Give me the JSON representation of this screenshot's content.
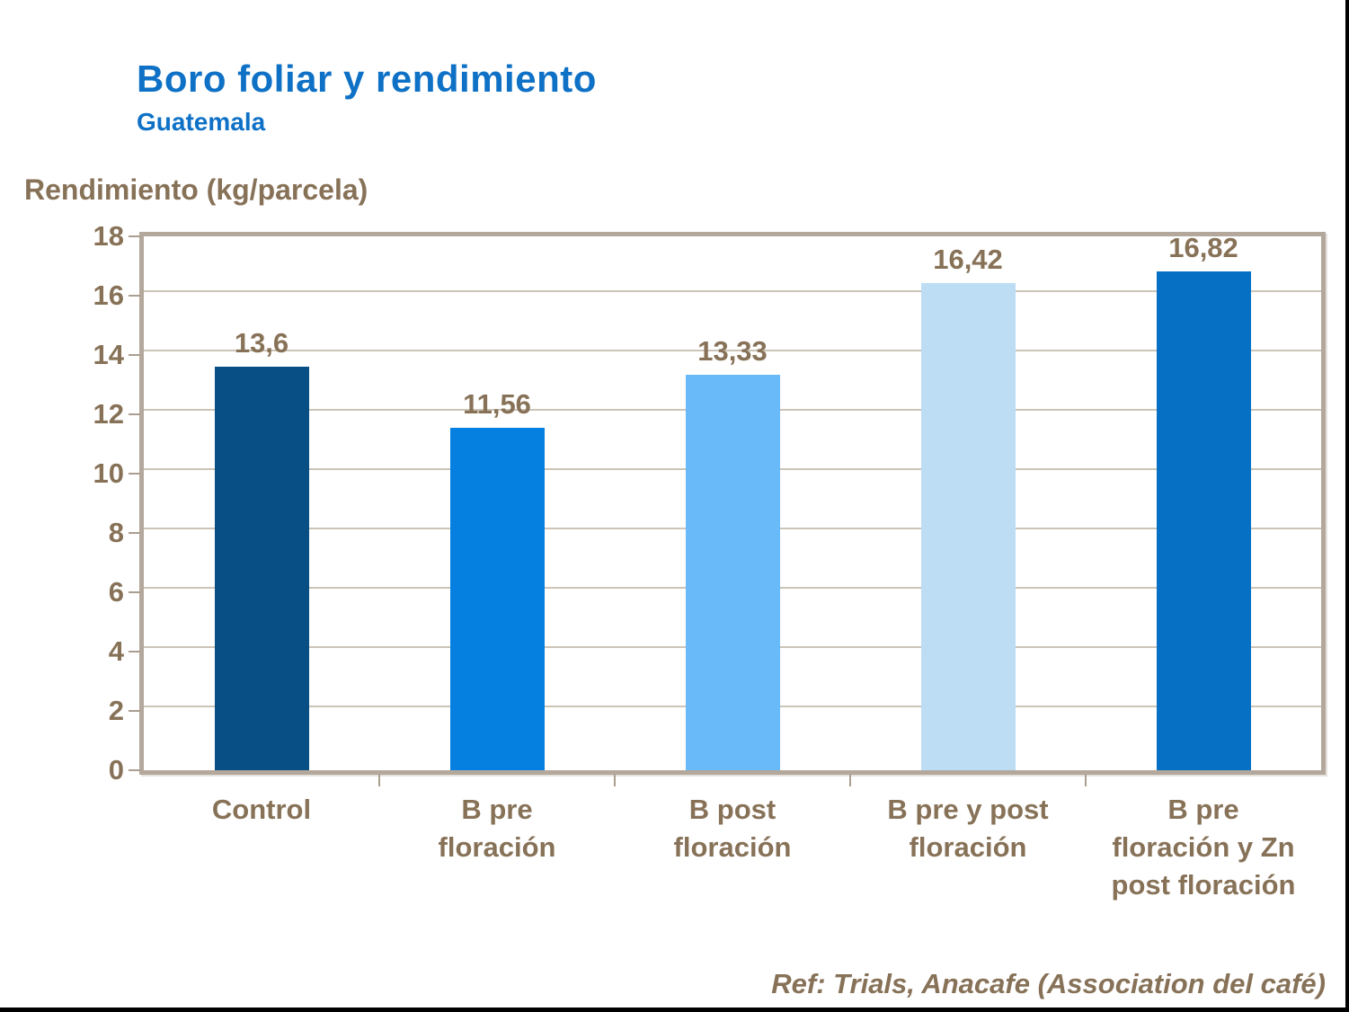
{
  "colors": {
    "title_blue": "#0e71c6",
    "text_brown": "#877258",
    "gridline": "#ccc4b7",
    "plot_border": "#b3a89b",
    "frame_border": "#000000"
  },
  "chart_data": {
    "type": "bar",
    "title": "Boro foliar y rendimiento",
    "subtitle": "Guatemala",
    "ylabel": "Rendimiento (kg/parcela)",
    "xlabel": "",
    "categories": [
      "Control",
      "B pre floración",
      "B post floración",
      "B pre y post floración",
      "B pre floración y Zn post floración"
    ],
    "category_lines": [
      [
        "Control"
      ],
      [
        "B pre",
        "floración"
      ],
      [
        "B post",
        "floración"
      ],
      [
        "B pre y post",
        "floración"
      ],
      [
        "B pre",
        "floración y Zn",
        "post floración"
      ]
    ],
    "values": [
      13.6,
      11.56,
      13.33,
      16.42,
      16.82
    ],
    "value_labels": [
      "13,6",
      "11,56",
      "13,33",
      "16,42",
      "16,82"
    ],
    "bar_colors": [
      "#084f85",
      "#0580e0",
      "#69baf8",
      "#bdddf5",
      "#0671c4"
    ],
    "ylim": [
      0,
      18
    ],
    "ytick_step": 2,
    "ytick_labels": [
      "0",
      "2",
      "4",
      "6",
      "8",
      "10",
      "12",
      "14",
      "16",
      "18"
    ],
    "grid": true,
    "legend": "none",
    "source": "Ref: Trials, Anacafe (Association del café)"
  }
}
